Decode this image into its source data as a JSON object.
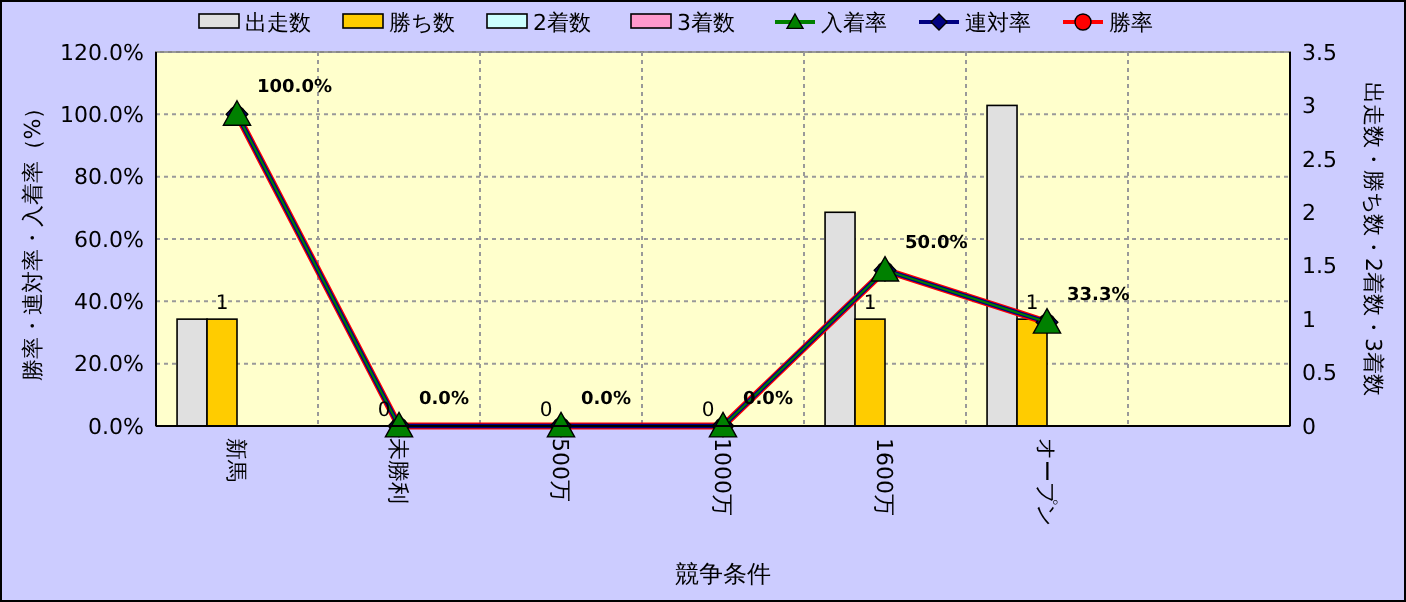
{
  "chart_data": {
    "type": "bar",
    "xlabel": "競争条件",
    "ylabel": "勝率・連対率・入着率（%）",
    "y2label": "出走数・勝ち数・2着数・3着数",
    "categories": [
      "新馬",
      "未勝利",
      "500万",
      "1000万",
      "1600万",
      "オープン",
      null
    ],
    "series": [
      {
        "name": "出走数",
        "axis": "y2",
        "color": "#e0e0e0",
        "values": [
          1,
          0,
          0,
          0,
          2,
          3,
          null
        ]
      },
      {
        "name": "勝ち数",
        "axis": "y2",
        "color": "#ffcc00",
        "values": [
          1,
          0,
          0,
          0,
          1,
          1,
          null
        ],
        "value_labels": [
          "1",
          "0",
          "0",
          "0",
          "1",
          "1",
          null
        ]
      },
      {
        "name": "2着数",
        "axis": "y2",
        "color": "#ccffff",
        "values": [
          0,
          0,
          0,
          0,
          0,
          0,
          null
        ]
      },
      {
        "name": "3着数",
        "axis": "y2",
        "color": "#ff99cc",
        "values": [
          0,
          0,
          0,
          0,
          0,
          0,
          null
        ]
      },
      {
        "name": "入着率",
        "type": "line",
        "axis": "y",
        "color": "#008000",
        "marker": "triangle",
        "values": [
          100,
          0,
          0,
          0,
          50,
          33.3,
          null
        ]
      },
      {
        "name": "連対率",
        "type": "line",
        "axis": "y",
        "color": "#000080",
        "marker": "diamond",
        "values": [
          100,
          0,
          0,
          0,
          50,
          33.3,
          null
        ]
      },
      {
        "name": "勝率",
        "type": "line",
        "axis": "y",
        "color": "#ff0000",
        "marker": "circle",
        "values": [
          100,
          0,
          0,
          0,
          50,
          33.3,
          null
        ],
        "value_labels": [
          "100.0%",
          "0.0%",
          "0.0%",
          "0.0%",
          "50.0%",
          "33.3%",
          null
        ]
      }
    ],
    "ylim": [
      0,
      120
    ],
    "yticks": [
      {
        "value": 0,
        "label": "0.0%"
      },
      {
        "value": 20,
        "label": "20.0%"
      },
      {
        "value": 40,
        "label": "40.0%"
      },
      {
        "value": 60,
        "label": "60.0%"
      },
      {
        "value": 80,
        "label": "80.0%"
      },
      {
        "value": 100,
        "label": "100.0%"
      },
      {
        "value": 120,
        "label": "120.0%"
      }
    ],
    "y2lim": [
      0,
      3.5
    ],
    "y2ticks": [
      0,
      0.5,
      1,
      1.5,
      2,
      2.5,
      3,
      3.5
    ],
    "grid": true,
    "legend": "top"
  }
}
